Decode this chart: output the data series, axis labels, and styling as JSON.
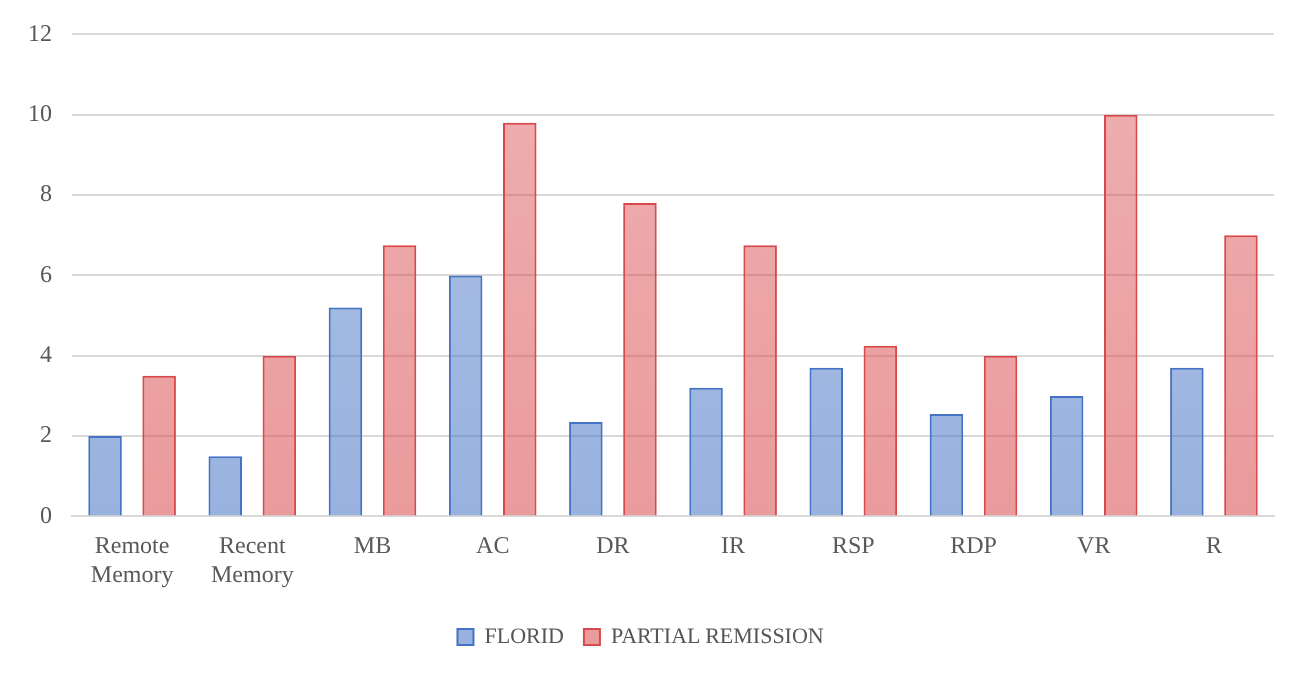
{
  "chart_data": {
    "type": "bar",
    "categories": [
      "Remote Memory",
      "Recent Memory",
      "MB",
      "AC",
      "DR",
      "IR",
      "RSP",
      "RDP",
      "VR",
      "R"
    ],
    "series": [
      {
        "name": "FLORID",
        "color": "#4472c4",
        "values": [
          2.0,
          1.5,
          5.2,
          6.0,
          2.35,
          3.2,
          3.7,
          2.55,
          3.0,
          3.7
        ]
      },
      {
        "name": "PARTIAL REMISSION",
        "color": "#d9484a",
        "values": [
          3.5,
          4.0,
          6.75,
          9.8,
          7.8,
          6.75,
          4.25,
          4.0,
          10.0,
          7.0
        ]
      }
    ],
    "ylim": [
      0,
      12
    ],
    "yticks": [
      0,
      2,
      4,
      6,
      8,
      10,
      12
    ],
    "grid": "y",
    "legend": "bottom"
  }
}
